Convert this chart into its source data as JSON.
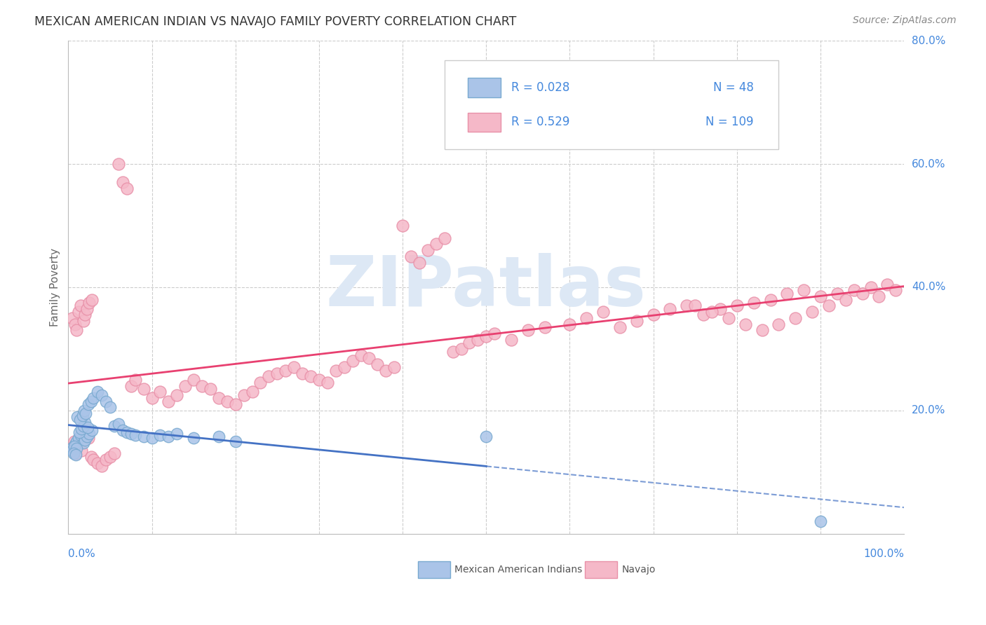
{
  "title": "MEXICAN AMERICAN INDIAN VS NAVAJO FAMILY POVERTY CORRELATION CHART",
  "source": "Source: ZipAtlas.com",
  "ylabel": "Family Poverty",
  "legend_blue_R": "0.028",
  "legend_blue_N": "48",
  "legend_pink_R": "0.529",
  "legend_pink_N": "109",
  "blue_fill": "#aac4e8",
  "pink_fill": "#f5b8c8",
  "blue_edge": "#7aaad0",
  "pink_edge": "#e890a8",
  "blue_line_color": "#4472c4",
  "pink_line_color": "#e84070",
  "axis_label_color": "#4488dd",
  "watermark_color": "#dde8f5",
  "background_color": "#ffffff",
  "grid_color": "#cccccc",
  "blue_scatter_x": [
    0.005,
    0.008,
    0.01,
    0.012,
    0.015,
    0.018,
    0.02,
    0.022,
    0.025,
    0.028,
    0.005,
    0.007,
    0.01,
    0.013,
    0.016,
    0.018,
    0.02,
    0.023,
    0.006,
    0.009,
    0.011,
    0.014,
    0.017,
    0.019,
    0.021,
    0.024,
    0.027,
    0.03,
    0.035,
    0.04,
    0.045,
    0.05,
    0.055,
    0.06,
    0.065,
    0.07,
    0.075,
    0.08,
    0.09,
    0.1,
    0.11,
    0.12,
    0.13,
    0.15,
    0.18,
    0.2,
    0.5,
    0.9
  ],
  "blue_scatter_y": [
    0.14,
    0.145,
    0.15,
    0.155,
    0.16,
    0.148,
    0.152,
    0.158,
    0.162,
    0.168,
    0.135,
    0.142,
    0.138,
    0.165,
    0.17,
    0.175,
    0.18,
    0.172,
    0.13,
    0.128,
    0.19,
    0.185,
    0.192,
    0.2,
    0.195,
    0.21,
    0.215,
    0.22,
    0.23,
    0.225,
    0.215,
    0.205,
    0.175,
    0.178,
    0.168,
    0.165,
    0.162,
    0.16,
    0.158,
    0.155,
    0.16,
    0.158,
    0.162,
    0.155,
    0.158,
    0.15,
    0.158,
    0.02
  ],
  "pink_scatter_x": [
    0.005,
    0.008,
    0.01,
    0.012,
    0.015,
    0.018,
    0.02,
    0.022,
    0.025,
    0.028,
    0.005,
    0.007,
    0.009,
    0.013,
    0.016,
    0.019,
    0.021,
    0.024,
    0.027,
    0.03,
    0.035,
    0.04,
    0.045,
    0.05,
    0.055,
    0.06,
    0.065,
    0.07,
    0.075,
    0.08,
    0.09,
    0.1,
    0.11,
    0.12,
    0.13,
    0.14,
    0.15,
    0.16,
    0.17,
    0.18,
    0.19,
    0.2,
    0.21,
    0.22,
    0.23,
    0.24,
    0.25,
    0.26,
    0.27,
    0.28,
    0.29,
    0.3,
    0.31,
    0.32,
    0.33,
    0.34,
    0.35,
    0.36,
    0.37,
    0.38,
    0.39,
    0.4,
    0.41,
    0.42,
    0.43,
    0.44,
    0.45,
    0.46,
    0.47,
    0.48,
    0.49,
    0.5,
    0.51,
    0.53,
    0.55,
    0.57,
    0.6,
    0.62,
    0.64,
    0.66,
    0.68,
    0.7,
    0.72,
    0.74,
    0.76,
    0.78,
    0.8,
    0.82,
    0.84,
    0.86,
    0.88,
    0.9,
    0.92,
    0.94,
    0.96,
    0.98,
    0.99,
    0.97,
    0.95,
    0.93,
    0.91,
    0.89,
    0.87,
    0.85,
    0.83,
    0.81,
    0.79,
    0.77,
    0.75
  ],
  "pink_scatter_y": [
    0.35,
    0.34,
    0.33,
    0.36,
    0.37,
    0.345,
    0.355,
    0.365,
    0.375,
    0.38,
    0.14,
    0.15,
    0.13,
    0.145,
    0.135,
    0.16,
    0.17,
    0.155,
    0.125,
    0.12,
    0.115,
    0.11,
    0.12,
    0.125,
    0.13,
    0.6,
    0.57,
    0.56,
    0.24,
    0.25,
    0.235,
    0.22,
    0.23,
    0.215,
    0.225,
    0.24,
    0.25,
    0.24,
    0.235,
    0.22,
    0.215,
    0.21,
    0.225,
    0.23,
    0.245,
    0.255,
    0.26,
    0.265,
    0.27,
    0.26,
    0.255,
    0.25,
    0.245,
    0.265,
    0.27,
    0.28,
    0.29,
    0.285,
    0.275,
    0.265,
    0.27,
    0.5,
    0.45,
    0.44,
    0.46,
    0.47,
    0.48,
    0.295,
    0.3,
    0.31,
    0.315,
    0.32,
    0.325,
    0.315,
    0.33,
    0.335,
    0.34,
    0.35,
    0.36,
    0.335,
    0.345,
    0.355,
    0.365,
    0.37,
    0.355,
    0.365,
    0.37,
    0.375,
    0.38,
    0.39,
    0.395,
    0.385,
    0.39,
    0.395,
    0.4,
    0.405,
    0.395,
    0.385,
    0.39,
    0.38,
    0.37,
    0.36,
    0.35,
    0.34,
    0.33,
    0.34,
    0.35,
    0.36,
    0.37
  ]
}
